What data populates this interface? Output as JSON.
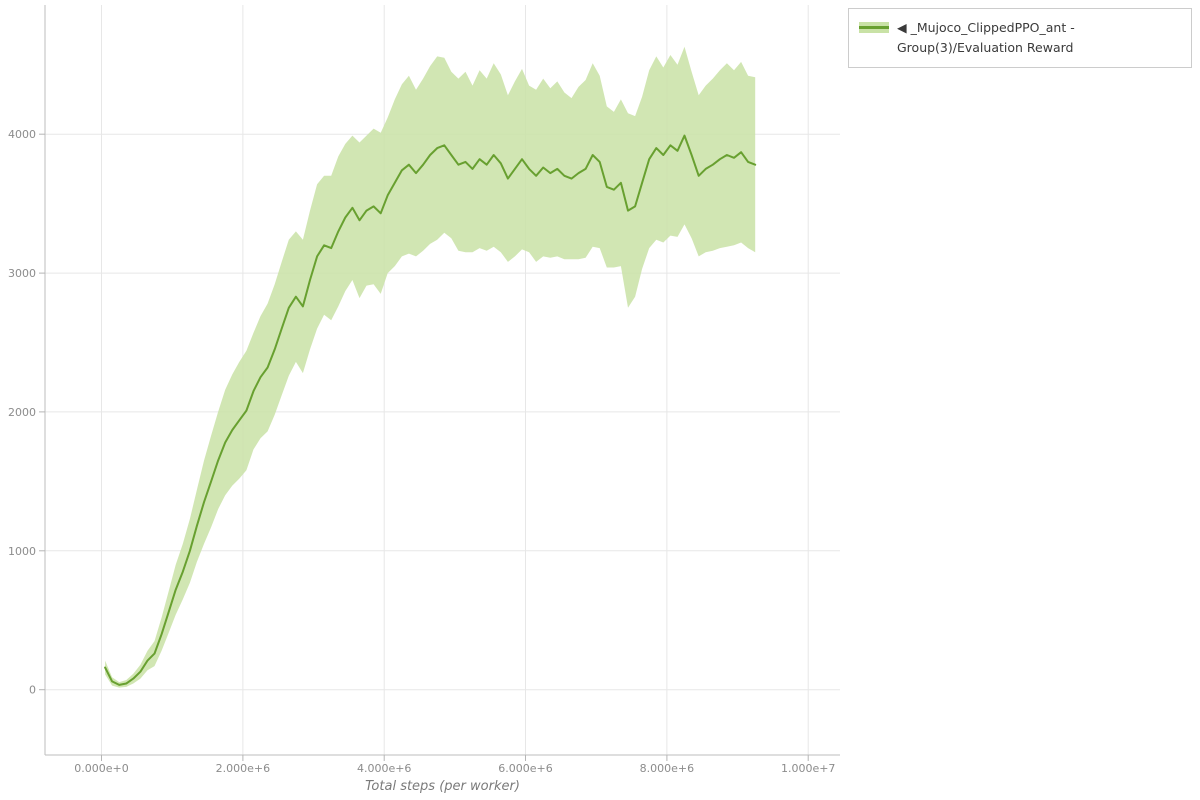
{
  "figure": {
    "x_axis_title": "Total steps (per worker)"
  },
  "legend": {
    "position": "top-right",
    "items": [
      {
        "label": "◀ _Mujoco_ClippedPPO_ant - Group(3)/Evaluation Reward",
        "line_color": "#68a030",
        "band_color": "#c9e2a6"
      }
    ]
  },
  "chart_data": {
    "type": "line",
    "title": "",
    "xlabel": "Total steps (per worker)",
    "ylabel": "",
    "x_unit": "millions of steps",
    "xlim": [
      -0.8,
      10.45
    ],
    "ylim": [
      -470,
      4930
    ],
    "grid": true,
    "legend_position": "top-right",
    "x_ticks": {
      "values": [
        0,
        2,
        4,
        6,
        8,
        10
      ],
      "labels": [
        "0.000e+0",
        "2.000e+6",
        "4.000e+6",
        "6.000e+6",
        "8.000e+6",
        "1.000e+7"
      ]
    },
    "y_ticks": {
      "values": [
        0,
        1000,
        2000,
        3000,
        4000
      ],
      "labels": [
        "0",
        "1000",
        "2000",
        "3000",
        "4000"
      ]
    },
    "series": [
      {
        "name": "_Mujoco_ClippedPPO_ant - Group(3)/Evaluation Reward",
        "line_color": "#68a030",
        "band_color": "#c9e2a6",
        "x": [
          0.05,
          0.15,
          0.25,
          0.35,
          0.45,
          0.55,
          0.65,
          0.75,
          0.85,
          0.95,
          1.05,
          1.15,
          1.25,
          1.35,
          1.45,
          1.55,
          1.65,
          1.75,
          1.85,
          1.95,
          2.05,
          2.15,
          2.25,
          2.35,
          2.45,
          2.55,
          2.65,
          2.75,
          2.85,
          2.95,
          3.05,
          3.15,
          3.25,
          3.35,
          3.45,
          3.55,
          3.65,
          3.75,
          3.85,
          3.95,
          4.05,
          4.15,
          4.25,
          4.35,
          4.45,
          4.55,
          4.65,
          4.75,
          4.85,
          4.95,
          5.05,
          5.15,
          5.25,
          5.35,
          5.45,
          5.55,
          5.65,
          5.75,
          5.85,
          5.95,
          6.05,
          6.15,
          6.25,
          6.35,
          6.45,
          6.55,
          6.65,
          6.75,
          6.85,
          6.95,
          7.05,
          7.15,
          7.25,
          7.35,
          7.45,
          7.55,
          7.65,
          7.75,
          7.85,
          7.95,
          8.05,
          8.15,
          8.25,
          8.35,
          8.45,
          8.55,
          8.65,
          8.75,
          8.85,
          8.95,
          9.05,
          9.15,
          9.25
        ],
        "mean": [
          160,
          60,
          35,
          45,
          80,
          130,
          210,
          260,
          400,
          560,
          720,
          850,
          1000,
          1180,
          1350,
          1500,
          1650,
          1780,
          1870,
          1940,
          2010,
          2150,
          2250,
          2320,
          2450,
          2600,
          2750,
          2830,
          2760,
          2950,
          3120,
          3200,
          3180,
          3300,
          3400,
          3470,
          3380,
          3450,
          3480,
          3430,
          3560,
          3650,
          3740,
          3780,
          3720,
          3780,
          3850,
          3900,
          3920,
          3850,
          3780,
          3800,
          3750,
          3820,
          3780,
          3850,
          3790,
          3680,
          3750,
          3820,
          3750,
          3700,
          3760,
          3720,
          3750,
          3700,
          3680,
          3720,
          3750,
          3850,
          3800,
          3620,
          3600,
          3650,
          3450,
          3480,
          3650,
          3820,
          3900,
          3850,
          3920,
          3880,
          3990,
          3850,
          3700,
          3750,
          3780,
          3820,
          3850,
          3830,
          3870,
          3800,
          3780
        ],
        "lower": [
          110,
          30,
          15,
          20,
          45,
          80,
          140,
          170,
          280,
          410,
          540,
          650,
          770,
          920,
          1050,
          1170,
          1300,
          1400,
          1470,
          1520,
          1580,
          1730,
          1810,
          1860,
          1980,
          2120,
          2260,
          2360,
          2280,
          2450,
          2600,
          2700,
          2660,
          2760,
          2870,
          2950,
          2820,
          2910,
          2920,
          2850,
          3000,
          3050,
          3120,
          3140,
          3120,
          3160,
          3210,
          3240,
          3290,
          3250,
          3160,
          3150,
          3150,
          3180,
          3160,
          3190,
          3150,
          3080,
          3120,
          3170,
          3150,
          3080,
          3120,
          3110,
          3120,
          3100,
          3100,
          3100,
          3110,
          3190,
          3180,
          3040,
          3040,
          3050,
          2750,
          2830,
          3030,
          3180,
          3240,
          3220,
          3270,
          3260,
          3350,
          3250,
          3120,
          3150,
          3160,
          3180,
          3190,
          3200,
          3220,
          3180,
          3150
        ],
        "upper": [
          210,
          90,
          55,
          70,
          115,
          180,
          280,
          350,
          520,
          710,
          900,
          1050,
          1230,
          1440,
          1650,
          1830,
          2000,
          2160,
          2270,
          2360,
          2440,
          2570,
          2690,
          2780,
          2920,
          3080,
          3240,
          3300,
          3240,
          3450,
          3640,
          3700,
          3700,
          3840,
          3930,
          3990,
          3940,
          3990,
          4040,
          4010,
          4120,
          4250,
          4360,
          4420,
          4320,
          4400,
          4490,
          4560,
          4550,
          4450,
          4400,
          4450,
          4350,
          4460,
          4400,
          4510,
          4430,
          4280,
          4380,
          4470,
          4350,
          4320,
          4400,
          4330,
          4380,
          4300,
          4260,
          4340,
          4390,
          4510,
          4420,
          4200,
          4160,
          4250,
          4150,
          4130,
          4270,
          4460,
          4560,
          4480,
          4570,
          4500,
          4630,
          4450,
          4280,
          4350,
          4400,
          4460,
          4510,
          4460,
          4520,
          4420,
          4410
        ]
      }
    ]
  }
}
